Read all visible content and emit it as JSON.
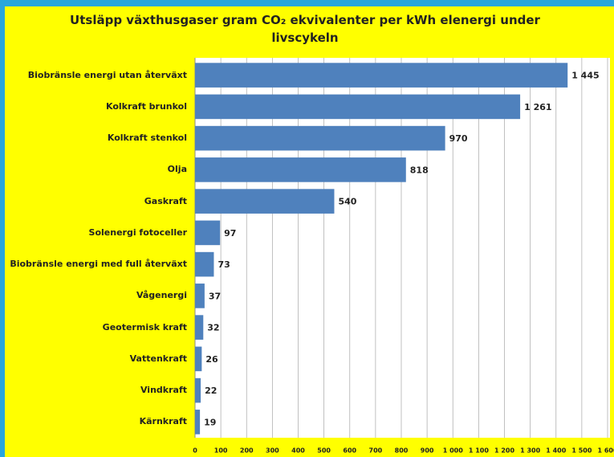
{
  "chart_data": {
    "type": "bar",
    "orientation": "horizontal",
    "title": "Utsläpp växthusgaser gram CO₂ ekvivalenter per kWh elenergi under livscykeln",
    "categories": [
      "Biobränsle energi utan återväxt",
      "Kolkraft brunkol",
      "Kolkraft stenkol",
      "Olja",
      "Gaskraft",
      "Solenergi fotoceller",
      "Biobränsle energi med full återväxt",
      "Vågenergi",
      "Geotermisk kraft",
      "Vattenkraft",
      "Vindkraft",
      "Kärnkraft"
    ],
    "values": [
      1445,
      1261,
      970,
      818,
      540,
      97,
      73,
      37,
      32,
      26,
      22,
      19
    ],
    "value_labels": [
      "1 445",
      "1 261",
      "970",
      "818",
      "540",
      "97",
      "73",
      "37",
      "32",
      "26",
      "22",
      "19"
    ],
    "color": "#4f81bd",
    "xlim": [
      0,
      1600
    ],
    "xticks": [
      0,
      100,
      200,
      300,
      400,
      500,
      600,
      700,
      800,
      900,
      {
        "value": 1000,
        "label": "1 000"
      },
      {
        "value": 1100,
        "label": "1 100"
      },
      {
        "value": 1200,
        "label": "1 200"
      },
      {
        "value": 1300,
        "label": "1 300"
      },
      {
        "value": 1400,
        "label": "1 400"
      },
      {
        "value": 1500,
        "label": "1 500"
      },
      {
        "value": 1600,
        "label": "1 600"
      }
    ],
    "grid": true
  }
}
